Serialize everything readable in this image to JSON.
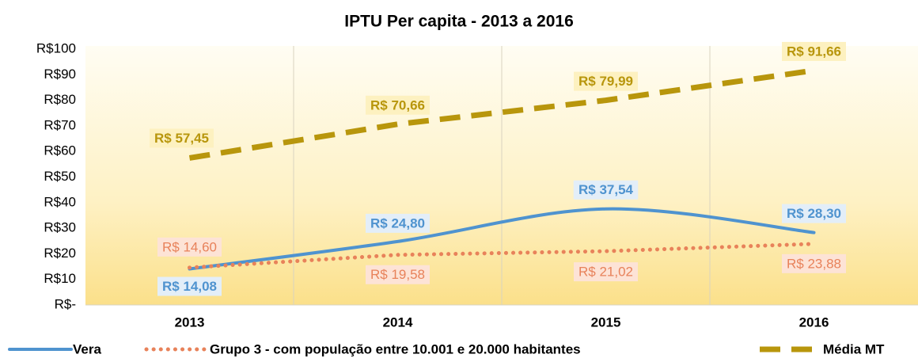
{
  "chart_data": {
    "type": "line",
    "title": "IPTU Per capita - 2013 a 2016",
    "categories": [
      "2013",
      "2014",
      "2015",
      "2016"
    ],
    "series": [
      {
        "name": "Vera",
        "color": "#4f93cf",
        "style": "smooth",
        "values": [
          14.08,
          24.8,
          37.54,
          28.3
        ],
        "value_labels": [
          "R$ 14,08",
          "R$ 24,80",
          "R$ 37,54",
          "R$ 28,30"
        ]
      },
      {
        "name": "Grupo 3 - com população entre 10.001 e 20.000 habitantes",
        "color": "#e8825a",
        "style": "dotted",
        "values": [
          14.6,
          19.58,
          21.02,
          23.88
        ],
        "value_labels": [
          "R$ 14,60",
          "R$ 19,58",
          "R$ 21,02",
          "R$ 23,88"
        ]
      },
      {
        "name": "Média MT",
        "color": "#b8960c",
        "style": "dashed",
        "values": [
          57.45,
          70.66,
          79.99,
          91.66
        ],
        "value_labels": [
          "R$ 57,45",
          "R$ 70,66",
          "R$ 79,99",
          "R$ 91,66"
        ]
      }
    ],
    "ylim": [
      0,
      100
    ],
    "yticks": [
      {
        "value": 0,
        "label": "R$-"
      },
      {
        "value": 10,
        "label": "R$10"
      },
      {
        "value": 20,
        "label": "R$20"
      },
      {
        "value": 30,
        "label": "R$30"
      },
      {
        "value": 40,
        "label": "R$40"
      },
      {
        "value": 50,
        "label": "R$50"
      },
      {
        "value": 60,
        "label": "R$60"
      },
      {
        "value": 70,
        "label": "R$70"
      },
      {
        "value": 80,
        "label": "R$80"
      },
      {
        "value": 90,
        "label": "R$90"
      },
      {
        "value": 100,
        "label": "R$100"
      }
    ],
    "grid": false,
    "legend": "bottom"
  }
}
